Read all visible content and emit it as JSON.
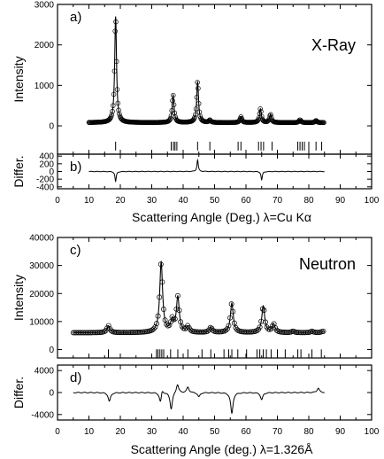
{
  "chart_data": [
    {
      "type": "scatter",
      "panel": "a",
      "panel_label": "a)",
      "annotation": "X-Ray",
      "ylabel": "Intensity",
      "xlim": [
        0,
        100
      ],
      "ylim": [
        -700,
        3000
      ],
      "yticks": [
        0,
        1000,
        2000,
        3000
      ],
      "yticklabels": [
        "0",
        "1000",
        "2000",
        "3000"
      ],
      "baseline": 80,
      "peaks": [
        {
          "x": 18.5,
          "y": 2700
        },
        {
          "x": 36.8,
          "y": 760
        },
        {
          "x": 44.6,
          "y": 1100
        },
        {
          "x": 48.5,
          "y": 140
        },
        {
          "x": 58.4,
          "y": 220
        },
        {
          "x": 64.6,
          "y": 420
        },
        {
          "x": 67.8,
          "y": 280
        },
        {
          "x": 77.2,
          "y": 150
        },
        {
          "x": 82.3,
          "y": 130
        }
      ],
      "x_range_data": [
        10,
        85
      ],
      "tick_marks_y": -500,
      "reflections": [
        18.5,
        36.2,
        36.9,
        37.4,
        38.0,
        44.6,
        48.5,
        57.5,
        58.4,
        64.0,
        64.8,
        65.6,
        68.3,
        76.5,
        77.2,
        77.9,
        78.6,
        80.0,
        82.3,
        84.1
      ]
    },
    {
      "type": "line",
      "panel": "b",
      "panel_label": "b)",
      "ylabel": "Differ.",
      "xlabel": "Scattering Angle (Deg.) λ=Cu Kα",
      "xlim": [
        0,
        100
      ],
      "xticks": [
        0,
        10,
        20,
        30,
        40,
        50,
        60,
        70,
        80,
        90,
        100
      ],
      "ylim": [
        -450,
        450
      ],
      "yticks": [
        -400,
        -200,
        0,
        200,
        400
      ],
      "yticklabels": [
        "-400",
        "-200",
        "0",
        "200",
        "400"
      ],
      "features": [
        {
          "x": 18.5,
          "y": -260
        },
        {
          "x": 44.6,
          "y": 300
        },
        {
          "x": 65.0,
          "y": -220
        }
      ]
    },
    {
      "type": "scatter",
      "panel": "c",
      "panel_label": "c)",
      "annotation": "Neutron",
      "ylabel": "Intensity",
      "xlim": [
        0,
        100
      ],
      "ylim": [
        -3000,
        40000
      ],
      "yticks": [
        0,
        10000,
        20000,
        30000,
        40000
      ],
      "yticklabels": [
        "0",
        "10000",
        "20000",
        "30000",
        "40000"
      ],
      "baseline": 6000,
      "peaks": [
        {
          "x": 16.2,
          "y": 8500
        },
        {
          "x": 33.0,
          "y": 31000
        },
        {
          "x": 36.5,
          "y": 10000
        },
        {
          "x": 38.3,
          "y": 18500
        },
        {
          "x": 41.5,
          "y": 8000
        },
        {
          "x": 48.8,
          "y": 7800
        },
        {
          "x": 55.5,
          "y": 16500
        },
        {
          "x": 65.5,
          "y": 15500
        },
        {
          "x": 68.8,
          "y": 9000
        },
        {
          "x": 75.0,
          "y": 6500
        },
        {
          "x": 81.0,
          "y": 6500
        },
        {
          "x": 84.5,
          "y": 6500
        }
      ],
      "x_range_data": [
        5,
        85
      ],
      "tick_marks_y": -1500,
      "reflections": [
        16.2,
        31.5,
        32.0,
        32.6,
        33.2,
        33.8,
        36.0,
        38.3,
        41.5,
        46.0,
        48.8,
        53.0,
        54.5,
        55.5,
        57.4,
        60.2,
        63.5,
        64.4,
        65.5,
        66.5,
        68.0,
        70.0,
        72.5,
        76.5,
        77.5,
        81.0,
        84.0
      ]
    },
    {
      "type": "line",
      "panel": "d",
      "panel_label": "d)",
      "ylabel": "Differ.",
      "xlabel": "Scattering Angle (deg.) λ=1.326Å",
      "xlim": [
        0,
        100
      ],
      "xticks": [
        0,
        10,
        20,
        30,
        40,
        50,
        60,
        70,
        80,
        90,
        100
      ],
      "ylim": [
        -5000,
        5000
      ],
      "yticks": [
        -4000,
        0,
        4000
      ],
      "yticklabels": [
        "-4000",
        "0",
        "4000"
      ],
      "features": [
        {
          "x": 16.5,
          "y": -1600
        },
        {
          "x": 32.8,
          "y": -2000
        },
        {
          "x": 33.3,
          "y": 1000
        },
        {
          "x": 36.2,
          "y": -3000
        },
        {
          "x": 38.2,
          "y": 1600
        },
        {
          "x": 41.5,
          "y": 1000
        },
        {
          "x": 45.0,
          "y": -800
        },
        {
          "x": 55.5,
          "y": -3800
        },
        {
          "x": 65.0,
          "y": -1300
        },
        {
          "x": 83.0,
          "y": 800
        }
      ]
    }
  ]
}
